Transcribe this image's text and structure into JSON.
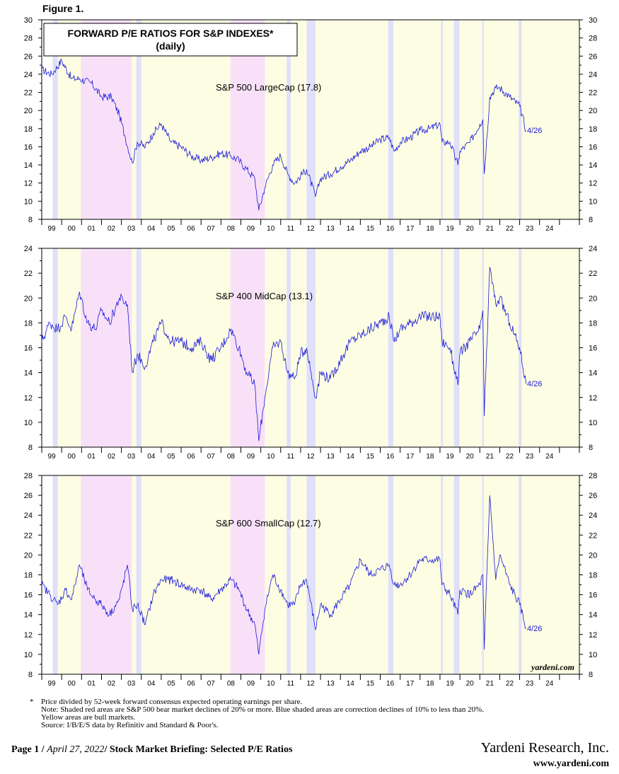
{
  "figure_label": "Figure 1.",
  "chart_title": "FORWARD P/E RATIOS FOR S&P INDEXES*",
  "chart_subtitle": "(daily)",
  "watermark": "yardeni.com",
  "footnotes": {
    "star": "*",
    "line1": "Price divided by 52-week forward consensus expected operating earnings per share.",
    "line2": "Note: Shaded red areas are S&P 500 bear market declines of 20% or more.  Blue shaded areas are correction declines of 10% to less than 20%.",
    "line3": "Yellow areas are bull markets.",
    "line4": "Source: I/B/E/S data by Refinitiv and Standard & Poor's."
  },
  "footer": {
    "page": "Page 1",
    "sep1": "/",
    "date": "April 27, 2022",
    "sep2": "/",
    "report": "Stock Market Briefing: Selected P/E Ratios",
    "firm": "Yardeni Research, Inc.",
    "website": "www.yardeni.com"
  },
  "colors": {
    "line": "#1a1ad8",
    "bear": "#f9e0f9",
    "correction": "#e0e0fa",
    "bull": "#fdfde3",
    "label": "#1a1ad8"
  },
  "shading": {
    "bear": [
      [
        1999.97,
        2002.52
      ],
      [
        2007.48,
        2009.2
      ]
    ],
    "correction": [
      [
        1998.55,
        1998.8
      ],
      [
        2002.75,
        2003.0
      ],
      [
        2010.3,
        2010.5
      ],
      [
        2011.3,
        2011.75
      ],
      [
        2015.4,
        2015.66
      ],
      [
        2018.05,
        2018.15
      ],
      [
        2018.7,
        2018.98
      ],
      [
        2020.12,
        2020.2
      ],
      [
        2021.95,
        2022.1
      ]
    ]
  },
  "chart_data": [
    {
      "type": "line",
      "name": "S&P 500 LargeCap (17.8)",
      "end_label": "4/26",
      "ylim": [
        8,
        30
      ],
      "yticks": [
        8,
        10,
        12,
        14,
        16,
        18,
        20,
        22,
        24,
        26,
        28,
        30
      ],
      "xlim": [
        1998.0,
        2025.0
      ],
      "xtick_labels": [
        "99",
        "00",
        "01",
        "02",
        "03",
        "04",
        "05",
        "06",
        "07",
        "08",
        "09",
        "10",
        "11",
        "12",
        "13",
        "14",
        "15",
        "16",
        "17",
        "18",
        "19",
        "20",
        "21",
        "22",
        "23",
        "24"
      ],
      "x": [
        1998.0,
        1998.5,
        1999.0,
        1999.5,
        1999.9,
        2000.5,
        2001.0,
        2001.5,
        2001.9,
        2002.2,
        2002.55,
        2002.8,
        2003.2,
        2003.6,
        2004.0,
        2004.5,
        2005.0,
        2005.5,
        2006.0,
        2006.5,
        2007.0,
        2007.5,
        2007.9,
        2008.3,
        2008.7,
        2008.9,
        2009.2,
        2009.6,
        2010.0,
        2010.35,
        2010.7,
        2011.0,
        2011.3,
        2011.75,
        2012.0,
        2012.5,
        2013.0,
        2013.5,
        2014.0,
        2014.5,
        2015.0,
        2015.45,
        2015.7,
        2016.0,
        2016.5,
        2017.0,
        2017.5,
        2018.0,
        2018.1,
        2018.5,
        2018.9,
        2019.0,
        2019.5,
        2020.0,
        2020.15,
        2020.22,
        2020.5,
        2020.8,
        2021.0,
        2021.5,
        2022.0,
        2022.32
      ],
      "y": [
        24.5,
        24.0,
        25.5,
        23.5,
        23.5,
        23.0,
        21.5,
        21.5,
        19.5,
        17.0,
        14.2,
        16.5,
        16.0,
        17.5,
        18.5,
        16.5,
        16.0,
        15.0,
        14.5,
        14.8,
        15.3,
        15.0,
        14.5,
        13.5,
        12.5,
        9.0,
        11.5,
        14.0,
        15.0,
        13.0,
        12.0,
        12.8,
        13.5,
        10.5,
        12.5,
        13.0,
        13.8,
        14.5,
        15.5,
        16.0,
        16.8,
        17.0,
        15.5,
        16.5,
        17.0,
        17.8,
        18.0,
        18.5,
        16.5,
        16.5,
        14.0,
        15.5,
        16.5,
        18.5,
        19.0,
        13.0,
        21.5,
        22.5,
        22.5,
        21.5,
        20.5,
        17.8
      ]
    },
    {
      "type": "line",
      "name": "S&P 400 MidCap (13.1)",
      "end_label": "4/26",
      "ylim": [
        8,
        24
      ],
      "yticks": [
        8,
        10,
        12,
        14,
        16,
        18,
        20,
        22,
        24
      ],
      "xlim": [
        1998.0,
        2025.0
      ],
      "xtick_labels": [
        "99",
        "00",
        "01",
        "02",
        "03",
        "04",
        "05",
        "06",
        "07",
        "08",
        "09",
        "10",
        "11",
        "12",
        "13",
        "14",
        "15",
        "16",
        "17",
        "18",
        "19",
        "20",
        "21",
        "22",
        "23",
        "24"
      ],
      "x": [
        1998.0,
        1998.4,
        1998.8,
        1999.2,
        1999.5,
        1999.9,
        2000.3,
        2000.7,
        2001.0,
        2001.4,
        2001.9,
        2002.3,
        2002.55,
        2002.8,
        2003.2,
        2003.6,
        2004.0,
        2004.5,
        2005.0,
        2005.5,
        2006.0,
        2006.5,
        2007.0,
        2007.5,
        2007.9,
        2008.3,
        2008.7,
        2008.9,
        2009.2,
        2009.6,
        2010.0,
        2010.35,
        2010.7,
        2011.0,
        2011.3,
        2011.75,
        2012.0,
        2012.5,
        2013.0,
        2013.5,
        2014.0,
        2014.5,
        2015.0,
        2015.45,
        2015.7,
        2016.0,
        2016.5,
        2017.0,
        2017.5,
        2018.0,
        2018.1,
        2018.5,
        2018.9,
        2019.0,
        2019.5,
        2020.0,
        2020.15,
        2020.22,
        2020.5,
        2020.8,
        2021.0,
        2021.5,
        2022.0,
        2022.32
      ],
      "y": [
        16.5,
        18.0,
        17.5,
        18.5,
        17.5,
        20.5,
        18.0,
        17.5,
        19.0,
        18.0,
        20.0,
        19.5,
        14.0,
        15.5,
        14.5,
        16.5,
        18.0,
        16.5,
        16.5,
        16.0,
        16.5,
        15.0,
        16.0,
        17.5,
        16.0,
        14.0,
        13.0,
        8.5,
        12.0,
        16.0,
        16.5,
        14.0,
        13.5,
        15.5,
        16.0,
        12.0,
        14.0,
        13.5,
        15.0,
        16.5,
        17.0,
        17.5,
        18.0,
        18.5,
        16.5,
        17.5,
        18.0,
        18.5,
        18.5,
        18.5,
        16.5,
        16.0,
        13.0,
        15.5,
        16.5,
        17.5,
        19.0,
        10.5,
        22.5,
        19.5,
        20.0,
        18.0,
        16.0,
        13.1
      ]
    },
    {
      "type": "line",
      "name": "S&P 600 SmallCap (12.7)",
      "end_label": "4/26",
      "ylim": [
        8,
        28
      ],
      "yticks": [
        8,
        10,
        12,
        14,
        16,
        18,
        20,
        22,
        24,
        26,
        28
      ],
      "xlim": [
        1998.0,
        2025.0
      ],
      "xtick_labels": [
        "99",
        "00",
        "01",
        "02",
        "03",
        "04",
        "05",
        "06",
        "07",
        "08",
        "09",
        "10",
        "11",
        "12",
        "13",
        "14",
        "15",
        "16",
        "17",
        "18",
        "19",
        "20",
        "21",
        "22",
        "23",
        "24"
      ],
      "x": [
        1998.0,
        1998.4,
        1998.8,
        1999.2,
        1999.5,
        1999.9,
        2000.3,
        2000.7,
        2001.0,
        2001.4,
        2001.9,
        2002.3,
        2002.55,
        2002.8,
        2003.2,
        2003.6,
        2004.0,
        2004.5,
        2005.0,
        2005.5,
        2006.0,
        2006.5,
        2007.0,
        2007.5,
        2007.9,
        2008.3,
        2008.7,
        2008.9,
        2009.2,
        2009.6,
        2010.0,
        2010.35,
        2010.7,
        2011.0,
        2011.3,
        2011.75,
        2012.0,
        2012.5,
        2013.0,
        2013.5,
        2014.0,
        2014.5,
        2015.0,
        2015.45,
        2015.7,
        2016.0,
        2016.5,
        2017.0,
        2017.5,
        2018.0,
        2018.1,
        2018.5,
        2018.9,
        2019.0,
        2019.5,
        2020.0,
        2020.15,
        2020.22,
        2020.5,
        2020.8,
        2021.0,
        2021.5,
        2022.0,
        2022.32
      ],
      "y": [
        17.0,
        16.0,
        15.0,
        16.5,
        15.5,
        19.0,
        16.5,
        15.5,
        15.0,
        14.0,
        15.5,
        19.0,
        14.5,
        15.0,
        13.0,
        16.0,
        17.5,
        17.5,
        17.0,
        16.5,
        16.5,
        15.5,
        16.5,
        17.5,
        16.5,
        14.5,
        13.0,
        10.0,
        14.5,
        18.0,
        16.5,
        15.0,
        15.0,
        17.0,
        17.5,
        12.5,
        15.0,
        14.0,
        15.5,
        17.0,
        19.5,
        18.0,
        18.5,
        19.0,
        17.0,
        17.0,
        18.0,
        19.5,
        19.5,
        19.5,
        17.0,
        16.0,
        14.0,
        16.5,
        16.0,
        17.0,
        18.0,
        10.5,
        26.0,
        17.5,
        20.0,
        17.0,
        15.0,
        12.7
      ]
    }
  ]
}
